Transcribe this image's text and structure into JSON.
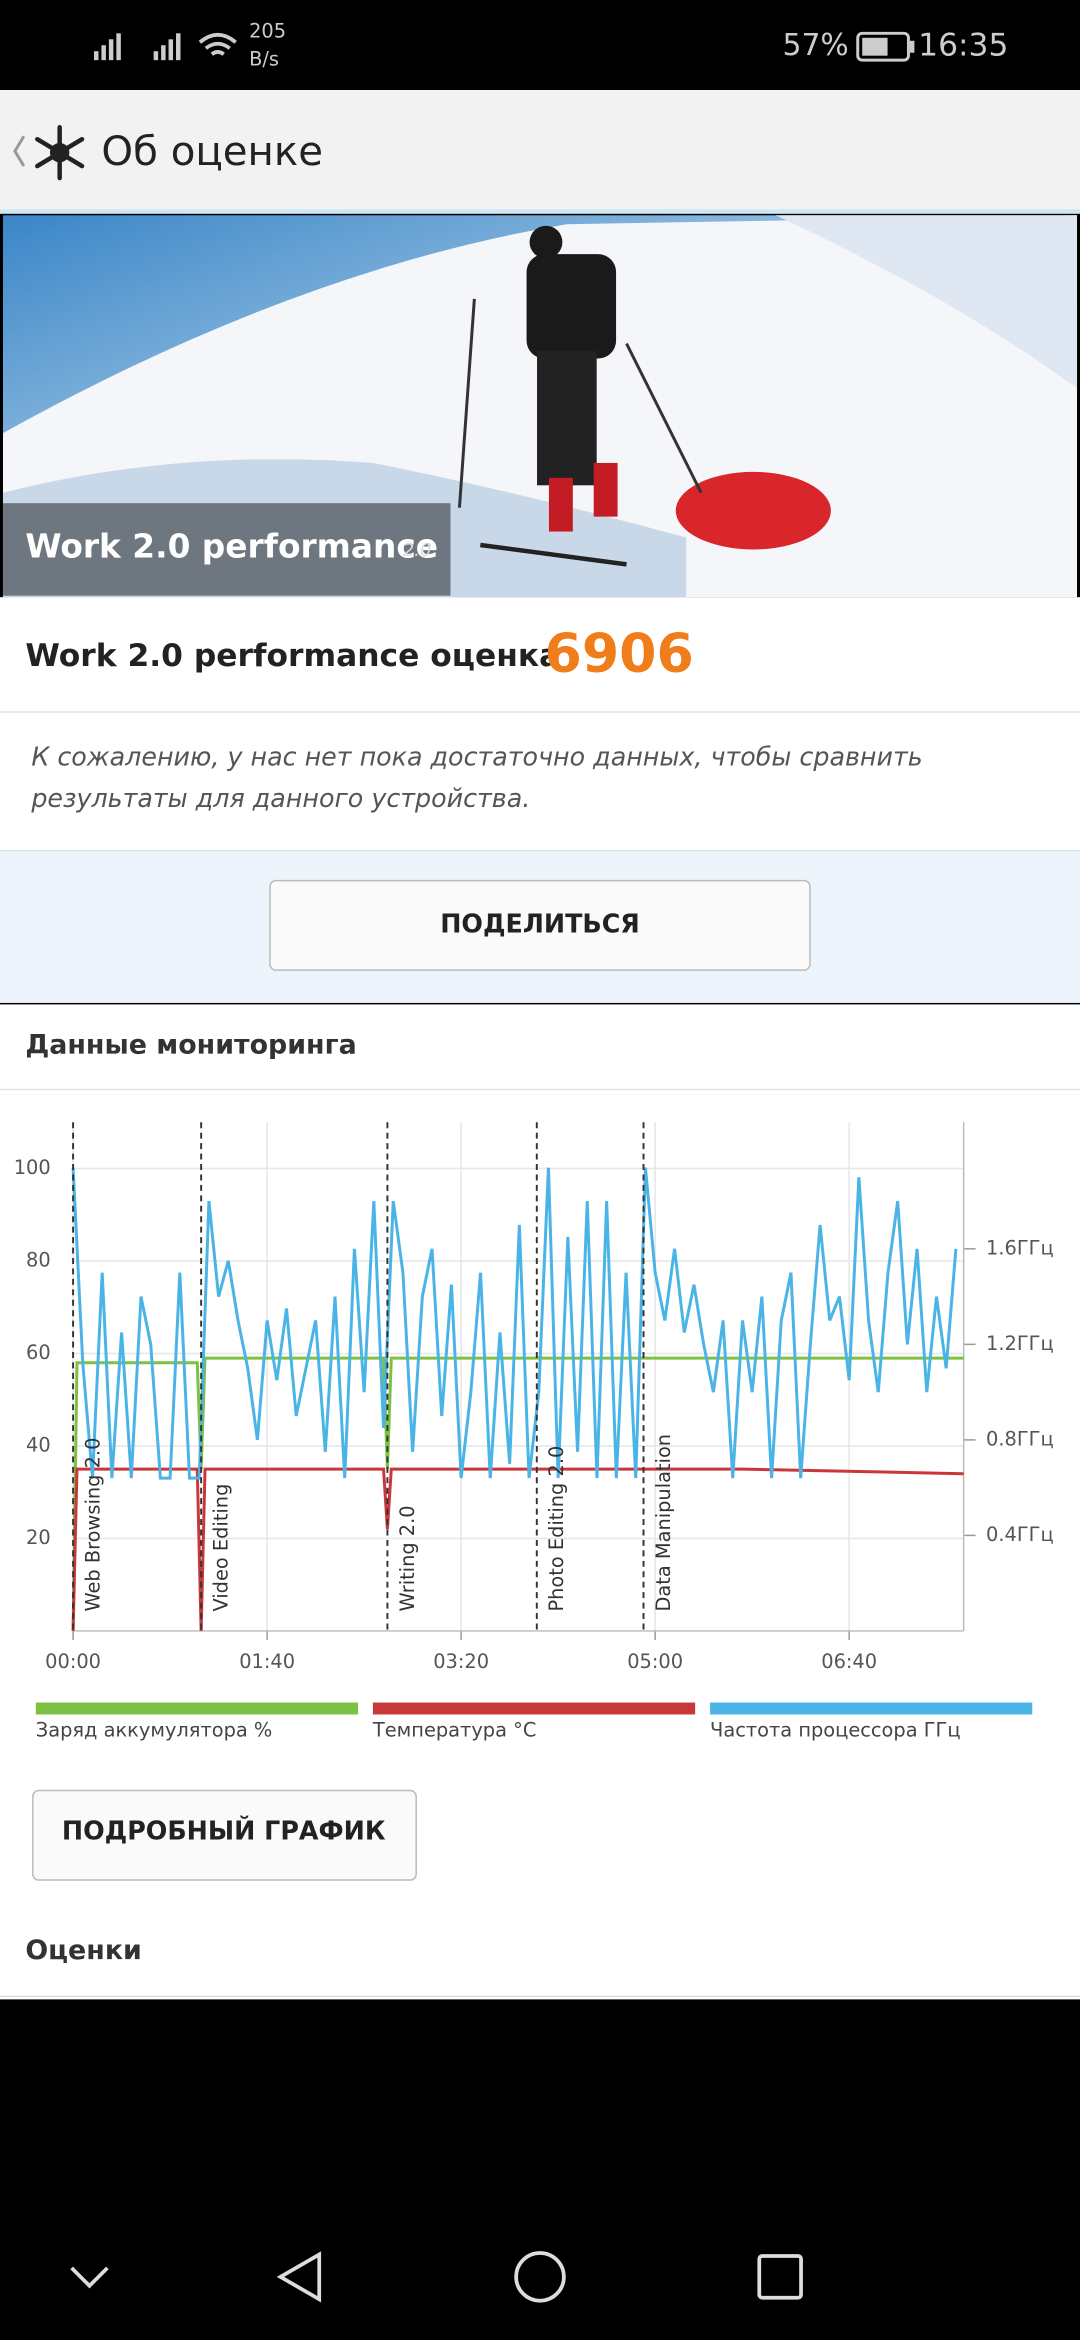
{
  "status_bar": {
    "speed": "205",
    "speed_unit": "B/s",
    "battery": "57%",
    "time": "16:35"
  },
  "header": {
    "title": "Об оценке"
  },
  "banner": {
    "title": "Work 2.0 performance",
    "version": "2.0"
  },
  "score": {
    "label": "Work 2.0 performance оценка",
    "value": "6906"
  },
  "message": {
    "lines": [
      "К сожалению, у нас нет пока достаточно данных, чтобы сравнить",
      "результаты для данного устройства."
    ]
  },
  "share_button": "ПОДЕЛИТЬСЯ",
  "monitoring": {
    "title": "Данные мониторинга",
    "button": "ПОДРОБНЫЙ ГРАФИК"
  },
  "scores_title": "Оценки",
  "chart_data": {
    "type": "line",
    "xlim": [
      0,
      459
    ],
    "xticks": [
      {
        "value": 0,
        "label": "00:00"
      },
      {
        "value": 100,
        "label": "01:40"
      },
      {
        "value": 200,
        "label": "03:20"
      },
      {
        "value": 300,
        "label": "05:00"
      },
      {
        "value": 400,
        "label": "06:40"
      }
    ],
    "ylim": [
      0,
      110
    ],
    "yticks": [
      20,
      40,
      60,
      80,
      100
    ],
    "y2lim": [
      0,
      2.13
    ],
    "y2ticks": [
      {
        "value": 0.4,
        "label": "0.4ГГц"
      },
      {
        "value": 0.8,
        "label": "0.8ГГц"
      },
      {
        "value": 1.2,
        "label": "1.2ГГц"
      },
      {
        "value": 1.6,
        "label": "1.6ГГц"
      }
    ],
    "grid": true,
    "annotations": [
      {
        "x": 0,
        "label": "Web Browsing 2.0"
      },
      {
        "x": 66,
        "label": "Video Editing"
      },
      {
        "x": 162,
        "label": "Writing 2.0"
      },
      {
        "x": 239,
        "label": "Photo Editing 2.0"
      },
      {
        "x": 294,
        "label": "Data Manipulation"
      }
    ],
    "series": [
      {
        "name": "Заряд аккумулятора %",
        "color": "#7dc142",
        "x": [
          0,
          2,
          64,
          66,
          68,
          160,
          162,
          164,
          459
        ],
        "values": [
          0,
          58,
          58,
          35,
          59,
          59,
          35,
          59,
          59
        ]
      },
      {
        "name": "Температура °C",
        "color": "#c8373a",
        "x": [
          0,
          2,
          64,
          66,
          68,
          160,
          162,
          164,
          340,
          345,
          459
        ],
        "values": [
          0,
          35,
          35,
          0,
          35,
          35,
          22,
          35,
          35,
          35,
          34
        ]
      },
      {
        "name": "Частота процессора ГГц",
        "color": "#4ab4e6",
        "axis": "y2",
        "x": [
          0,
          5,
          10,
          15,
          20,
          25,
          30,
          35,
          40,
          45,
          50,
          55,
          60,
          65,
          70,
          75,
          80,
          85,
          90,
          95,
          100,
          105,
          110,
          115,
          120,
          125,
          130,
          135,
          140,
          145,
          150,
          155,
          160,
          165,
          170,
          175,
          180,
          185,
          190,
          195,
          200,
          205,
          210,
          215,
          220,
          225,
          230,
          235,
          240,
          245,
          250,
          255,
          260,
          265,
          270,
          275,
          280,
          285,
          290,
          295,
          300,
          305,
          310,
          315,
          320,
          325,
          330,
          335,
          340,
          345,
          350,
          355,
          360,
          365,
          370,
          375,
          380,
          385,
          390,
          395,
          400,
          405,
          410,
          415,
          420,
          425,
          430,
          435,
          440,
          445,
          450,
          455
        ],
        "values": [
          1.94,
          1.12,
          0.64,
          1.5,
          0.64,
          1.25,
          0.64,
          1.4,
          1.2,
          0.64,
          0.64,
          1.5,
          0.64,
          0.64,
          1.8,
          1.4,
          1.55,
          1.3,
          1.1,
          0.8,
          1.3,
          1.05,
          1.35,
          0.9,
          1.1,
          1.3,
          0.75,
          1.4,
          0.64,
          1.6,
          1.0,
          1.8,
          0.85,
          1.8,
          1.5,
          0.75,
          1.4,
          1.6,
          0.9,
          1.45,
          0.64,
          1.0,
          1.5,
          0.64,
          1.25,
          0.7,
          1.7,
          0.64,
          1.0,
          1.94,
          0.64,
          1.65,
          0.75,
          1.8,
          0.64,
          1.8,
          0.64,
          1.5,
          0.64,
          1.94,
          1.5,
          1.3,
          1.6,
          1.25,
          1.45,
          1.2,
          1.0,
          1.3,
          0.64,
          1.3,
          1.0,
          1.4,
          0.64,
          1.3,
          1.5,
          0.64,
          1.2,
          1.7,
          1.3,
          1.4,
          1.05,
          1.9,
          1.3,
          1.0,
          1.5,
          1.8,
          1.2,
          1.6,
          1.0,
          1.4,
          1.1,
          1.6
        ]
      }
    ]
  }
}
